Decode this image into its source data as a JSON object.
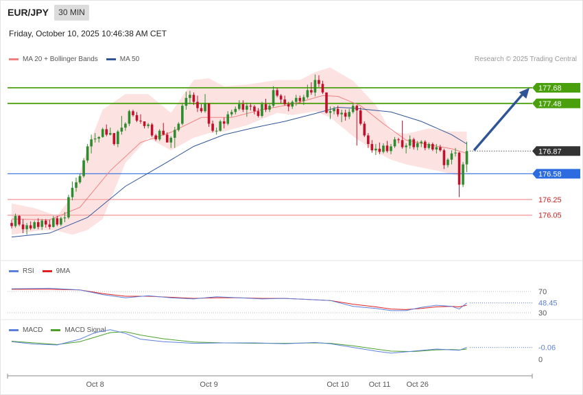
{
  "header": {
    "symbol": "EUR/JPY",
    "timeframe": "30 MIN",
    "datetime": "Friday, October 10, 2025 10:46:38 AM CET",
    "credit": "Research © 2025 Trading Central"
  },
  "legend": {
    "price": [
      {
        "label": "MA 20 + Bollinger Bands",
        "color": "#f08080"
      },
      {
        "label": "MA 50",
        "color": "#2f5597"
      }
    ],
    "rsi": [
      {
        "label": "RSI",
        "color": "#5b7fdb"
      },
      {
        "label": "9MA",
        "color": "#e02020"
      }
    ],
    "macd": [
      {
        "label": "MACD",
        "color": "#5b7fdb"
      },
      {
        "label": "MACD Signal",
        "color": "#4aa02a"
      }
    ]
  },
  "levels": [
    {
      "value": 177.68,
      "label": "177.68",
      "kind": "resistance",
      "color": "#4aa00c"
    },
    {
      "value": 177.48,
      "label": "177.48",
      "kind": "resistance",
      "color": "#4aa00c"
    },
    {
      "value": 176.87,
      "label": "176.87",
      "kind": "last",
      "color": "#333333"
    },
    {
      "value": 176.58,
      "label": "176.58",
      "kind": "pivot",
      "color": "#2d6be0"
    },
    {
      "value": 176.25,
      "label": "176.25",
      "kind": "support",
      "color": "#e06060"
    },
    {
      "value": 176.05,
      "label": "176.05",
      "kind": "support",
      "color": "#e06060"
    }
  ],
  "rsi_panel": {
    "ticks": [
      "70",
      "30"
    ],
    "last": "48.45"
  },
  "macd_panel": {
    "ticks": [
      "0",
      "0"
    ],
    "last": "-0.06"
  },
  "x_axis": {
    "labels": [
      "Oct 8",
      "Oct 9",
      "Oct 10",
      "Oct 11",
      "Oct 26"
    ]
  },
  "chart_data": {
    "type": "candlestick",
    "instrument": "EUR/JPY",
    "interval": "30 MIN",
    "ylim": [
      175.7,
      177.95
    ],
    "candles": [
      [
        175.95,
        175.99,
        175.88,
        175.91
      ],
      [
        175.91,
        176.07,
        175.89,
        176.04
      ],
      [
        176.04,
        176.05,
        175.91,
        175.93
      ],
      [
        175.93,
        176.0,
        175.82,
        175.87
      ],
      [
        175.87,
        175.95,
        175.8,
        175.92
      ],
      [
        175.92,
        175.97,
        175.86,
        175.88
      ],
      [
        175.88,
        175.98,
        175.87,
        175.96
      ],
      [
        175.96,
        176.01,
        175.87,
        175.9
      ],
      [
        175.9,
        176.0,
        175.86,
        175.98
      ],
      [
        175.98,
        176.0,
        175.89,
        175.93
      ],
      [
        175.93,
        175.99,
        175.87,
        175.9
      ],
      [
        175.9,
        176.04,
        175.89,
        176.01
      ],
      [
        176.01,
        176.04,
        175.91,
        175.93
      ],
      [
        175.93,
        176.03,
        175.91,
        176.01
      ],
      [
        176.01,
        176.09,
        175.96,
        176.02
      ],
      [
        176.02,
        176.31,
        176.0,
        176.28
      ],
      [
        176.28,
        176.48,
        176.24,
        176.4
      ],
      [
        176.4,
        176.53,
        176.35,
        176.47
      ],
      [
        176.47,
        176.58,
        176.45,
        176.55
      ],
      [
        176.55,
        176.78,
        176.53,
        176.75
      ],
      [
        176.75,
        176.96,
        176.72,
        176.93
      ],
      [
        176.93,
        177.08,
        176.84,
        177.02
      ],
      [
        177.02,
        177.1,
        176.98,
        177.03
      ],
      [
        177.03,
        177.06,
        176.98,
        177.05
      ],
      [
        177.05,
        177.17,
        177.04,
        177.15
      ],
      [
        177.15,
        177.21,
        177.06,
        177.08
      ],
      [
        177.08,
        177.17,
        177.07,
        177.1
      ],
      [
        177.1,
        177.1,
        176.94,
        176.96
      ],
      [
        176.96,
        177.14,
        176.92,
        177.12
      ],
      [
        177.12,
        177.32,
        177.08,
        177.17
      ],
      [
        177.17,
        177.24,
        177.13,
        177.22
      ],
      [
        177.22,
        177.4,
        177.19,
        177.38
      ],
      [
        177.38,
        177.4,
        177.31,
        177.33
      ],
      [
        177.33,
        177.37,
        177.24,
        177.26
      ],
      [
        177.26,
        177.34,
        177.22,
        177.25
      ],
      [
        177.25,
        177.25,
        177.16,
        177.19
      ],
      [
        177.19,
        177.23,
        177.16,
        177.21
      ],
      [
        177.21,
        177.23,
        177.05,
        177.07
      ],
      [
        177.07,
        177.09,
        177.0,
        177.02
      ],
      [
        177.02,
        177.15,
        177.0,
        177.13
      ],
      [
        177.13,
        177.23,
        177.07,
        177.08
      ],
      [
        177.08,
        177.11,
        176.98,
        176.98
      ],
      [
        176.98,
        177.06,
        176.91,
        177.04
      ],
      [
        177.04,
        177.18,
        176.91,
        177.14
      ],
      [
        177.14,
        177.24,
        177.12,
        177.22
      ],
      [
        177.22,
        177.48,
        177.2,
        177.45
      ],
      [
        177.45,
        177.63,
        177.4,
        177.55
      ],
      [
        177.55,
        177.64,
        177.47,
        177.59
      ],
      [
        177.59,
        177.62,
        177.46,
        177.5
      ],
      [
        177.5,
        177.58,
        177.37,
        177.42
      ],
      [
        177.42,
        177.47,
        177.36,
        177.38
      ],
      [
        177.38,
        177.6,
        177.36,
        177.48
      ],
      [
        177.48,
        177.48,
        177.18,
        177.22
      ],
      [
        177.22,
        177.26,
        177.11,
        177.13
      ],
      [
        177.13,
        177.17,
        177.08,
        177.13
      ],
      [
        177.13,
        177.27,
        177.12,
        177.25
      ],
      [
        177.25,
        177.3,
        177.16,
        177.22
      ],
      [
        177.22,
        177.38,
        177.2,
        177.34
      ],
      [
        177.34,
        177.4,
        177.31,
        177.37
      ],
      [
        177.37,
        177.44,
        177.34,
        177.41
      ],
      [
        177.41,
        177.52,
        177.39,
        177.47
      ],
      [
        177.47,
        177.52,
        177.37,
        177.4
      ],
      [
        177.4,
        177.49,
        177.31,
        177.45
      ],
      [
        177.45,
        177.48,
        177.39,
        177.44
      ],
      [
        177.44,
        177.46,
        177.34,
        177.38
      ],
      [
        177.38,
        177.42,
        177.3,
        177.32
      ],
      [
        177.32,
        177.5,
        177.3,
        177.47
      ],
      [
        177.47,
        177.54,
        177.37,
        177.4
      ],
      [
        177.4,
        177.47,
        177.37,
        177.45
      ],
      [
        177.45,
        177.7,
        177.43,
        177.65
      ],
      [
        177.65,
        177.68,
        177.56,
        177.58
      ],
      [
        177.58,
        177.6,
        177.48,
        177.53
      ],
      [
        177.53,
        177.58,
        177.45,
        177.47
      ],
      [
        177.47,
        177.5,
        177.38,
        177.44
      ],
      [
        177.44,
        177.52,
        177.41,
        177.5
      ],
      [
        177.5,
        177.59,
        177.45,
        177.55
      ],
      [
        177.55,
        177.58,
        177.48,
        177.51
      ],
      [
        177.51,
        177.59,
        177.46,
        177.56
      ],
      [
        177.56,
        177.72,
        177.54,
        177.65
      ],
      [
        177.65,
        177.75,
        177.59,
        177.62
      ],
      [
        177.62,
        177.85,
        177.57,
        177.78
      ],
      [
        177.78,
        177.84,
        177.69,
        177.73
      ],
      [
        177.73,
        177.77,
        177.6,
        177.62
      ],
      [
        177.62,
        177.62,
        177.35,
        177.36
      ],
      [
        177.36,
        177.44,
        177.28,
        177.38
      ],
      [
        177.38,
        177.44,
        177.34,
        177.41
      ],
      [
        177.41,
        177.45,
        177.31,
        177.34
      ],
      [
        177.34,
        177.4,
        177.24,
        177.36
      ],
      [
        177.36,
        177.4,
        177.26,
        177.31
      ],
      [
        177.31,
        177.41,
        177.28,
        177.37
      ],
      [
        177.37,
        177.48,
        177.35,
        177.45
      ],
      [
        177.45,
        177.46,
        176.94,
        177.39
      ],
      [
        177.39,
        177.43,
        177.2,
        177.22
      ],
      [
        177.22,
        177.25,
        177.05,
        177.07
      ],
      [
        177.07,
        177.1,
        176.91,
        176.96
      ],
      [
        176.96,
        177.01,
        176.85,
        176.88
      ],
      [
        176.88,
        176.96,
        176.82,
        176.9
      ],
      [
        176.9,
        176.98,
        176.83,
        176.86
      ],
      [
        176.86,
        176.97,
        176.84,
        176.94
      ],
      [
        176.94,
        177.0,
        176.85,
        176.87
      ],
      [
        176.87,
        176.96,
        176.83,
        176.93
      ],
      [
        176.93,
        177.05,
        176.91,
        177.02
      ],
      [
        177.02,
        177.04,
        176.97,
        177.01
      ],
      [
        177.01,
        177.26,
        176.9,
        176.92
      ],
      [
        176.92,
        176.97,
        176.84,
        176.94
      ],
      [
        176.94,
        177.07,
        176.9,
        177.02
      ],
      [
        177.02,
        177.04,
        176.89,
        176.92
      ],
      [
        176.92,
        177.0,
        176.88,
        176.97
      ],
      [
        176.97,
        177.01,
        176.92,
        176.99
      ],
      [
        176.99,
        177.01,
        176.88,
        176.91
      ],
      [
        176.91,
        176.98,
        176.89,
        176.96
      ],
      [
        176.96,
        176.98,
        176.87,
        176.89
      ],
      [
        176.89,
        176.96,
        176.84,
        176.92
      ],
      [
        176.92,
        176.95,
        176.86,
        176.88
      ],
      [
        176.88,
        176.9,
        176.64,
        176.69
      ],
      [
        176.69,
        176.78,
        176.66,
        176.76
      ],
      [
        176.76,
        176.88,
        176.7,
        176.84
      ],
      [
        176.84,
        176.91,
        176.8,
        176.85
      ],
      [
        176.85,
        176.86,
        176.28,
        176.44
      ],
      [
        176.44,
        176.73,
        176.41,
        176.7
      ],
      [
        176.7,
        176.99,
        176.6,
        176.87
      ]
    ],
    "ma20": [
      [
        0,
        176.0
      ],
      [
        10,
        175.99
      ],
      [
        18,
        176.15
      ],
      [
        26,
        176.62
      ],
      [
        34,
        176.98
      ],
      [
        42,
        177.11
      ],
      [
        50,
        177.3
      ],
      [
        58,
        177.3
      ],
      [
        66,
        177.4
      ],
      [
        74,
        177.47
      ],
      [
        82,
        177.58
      ],
      [
        86,
        177.57
      ],
      [
        92,
        177.45
      ],
      [
        98,
        177.22
      ],
      [
        104,
        177.01
      ],
      [
        110,
        176.95
      ],
      [
        116,
        176.9
      ],
      [
        120,
        176.84
      ]
    ],
    "bollinger_upper": [
      [
        0,
        176.2
      ],
      [
        6,
        176.14
      ],
      [
        12,
        176.04
      ],
      [
        16,
        176.3
      ],
      [
        20,
        176.9
      ],
      [
        24,
        177.4
      ],
      [
        30,
        177.6
      ],
      [
        36,
        177.6
      ],
      [
        42,
        177.36
      ],
      [
        48,
        177.78
      ],
      [
        52,
        177.8
      ],
      [
        56,
        177.7
      ],
      [
        62,
        177.72
      ],
      [
        70,
        177.78
      ],
      [
        76,
        177.78
      ],
      [
        80,
        177.88
      ],
      [
        84,
        177.94
      ],
      [
        90,
        177.77
      ],
      [
        96,
        177.46
      ],
      [
        100,
        177.12
      ],
      [
        104,
        177.09
      ],
      [
        110,
        177.16
      ],
      [
        116,
        177.12
      ],
      [
        120,
        177.12
      ]
    ],
    "bollinger_lower": [
      [
        0,
        175.8
      ],
      [
        8,
        175.86
      ],
      [
        12,
        175.85
      ],
      [
        16,
        175.8
      ],
      [
        20,
        175.86
      ],
      [
        24,
        176.0
      ],
      [
        30,
        176.72
      ],
      [
        36,
        177.04
      ],
      [
        42,
        176.88
      ],
      [
        48,
        177.04
      ],
      [
        52,
        177.1
      ],
      [
        56,
        177.12
      ],
      [
        62,
        177.2
      ],
      [
        70,
        177.36
      ],
      [
        74,
        177.33
      ],
      [
        80,
        177.38
      ],
      [
        84,
        177.3
      ],
      [
        90,
        177.06
      ],
      [
        96,
        176.86
      ],
      [
        100,
        176.76
      ],
      [
        104,
        176.7
      ],
      [
        108,
        176.66
      ],
      [
        114,
        176.6
      ],
      [
        118,
        176.55
      ],
      [
        120,
        176.66
      ]
    ],
    "ma50": [
      [
        0,
        175.77
      ],
      [
        10,
        175.82
      ],
      [
        20,
        176.02
      ],
      [
        30,
        176.42
      ],
      [
        40,
        176.7
      ],
      [
        48,
        176.93
      ],
      [
        56,
        177.08
      ],
      [
        64,
        177.17
      ],
      [
        72,
        177.25
      ],
      [
        80,
        177.35
      ],
      [
        86,
        177.43
      ],
      [
        90,
        177.42
      ],
      [
        100,
        177.37
      ],
      [
        108,
        177.25
      ],
      [
        116,
        177.08
      ],
      [
        120,
        176.96
      ]
    ],
    "projection": [
      [
        121,
        176.87
      ],
      [
        131,
        177.68
      ]
    ],
    "rsi": [
      [
        0,
        75
      ],
      [
        10,
        76
      ],
      [
        18,
        73
      ],
      [
        24,
        64
      ],
      [
        30,
        58
      ],
      [
        36,
        62
      ],
      [
        42,
        58
      ],
      [
        48,
        56
      ],
      [
        54,
        60
      ],
      [
        60,
        58
      ],
      [
        66,
        56
      ],
      [
        72,
        57
      ],
      [
        78,
        55
      ],
      [
        84,
        53
      ],
      [
        90,
        42
      ],
      [
        96,
        38
      ],
      [
        100,
        34
      ],
      [
        104,
        34
      ],
      [
        108,
        40
      ],
      [
        112,
        44
      ],
      [
        116,
        42
      ],
      [
        118,
        37
      ],
      [
        120,
        48.45
      ]
    ],
    "rsi_9ma": [
      [
        0,
        74
      ],
      [
        10,
        74
      ],
      [
        18,
        73
      ],
      [
        24,
        66
      ],
      [
        30,
        61
      ],
      [
        36,
        61
      ],
      [
        42,
        59
      ],
      [
        48,
        57
      ],
      [
        54,
        58
      ],
      [
        60,
        58
      ],
      [
        66,
        57
      ],
      [
        72,
        57
      ],
      [
        78,
        55
      ],
      [
        84,
        53
      ],
      [
        90,
        46
      ],
      [
        96,
        41
      ],
      [
        100,
        37
      ],
      [
        104,
        36
      ],
      [
        108,
        38
      ],
      [
        112,
        41
      ],
      [
        116,
        42
      ],
      [
        118,
        41
      ],
      [
        120,
        44
      ]
    ],
    "macd": [
      [
        0,
        0.08
      ],
      [
        6,
        0.02
      ],
      [
        12,
        0.0
      ],
      [
        18,
        0.14
      ],
      [
        22,
        0.3
      ],
      [
        26,
        0.37
      ],
      [
        30,
        0.28
      ],
      [
        34,
        0.14
      ],
      [
        40,
        0.08
      ],
      [
        48,
        0.04
      ],
      [
        56,
        0.05
      ],
      [
        64,
        0.05
      ],
      [
        72,
        0.03
      ],
      [
        80,
        0.06
      ],
      [
        84,
        0.03
      ],
      [
        90,
        -0.06
      ],
      [
        96,
        -0.15
      ],
      [
        100,
        -0.2
      ],
      [
        106,
        -0.15
      ],
      [
        112,
        -0.1
      ],
      [
        116,
        -0.12
      ],
      [
        118,
        -0.13
      ],
      [
        120,
        -0.06
      ]
    ],
    "macd_signal": [
      [
        0,
        0.09
      ],
      [
        6,
        0.05
      ],
      [
        12,
        0.01
      ],
      [
        18,
        0.08
      ],
      [
        22,
        0.19
      ],
      [
        26,
        0.3
      ],
      [
        30,
        0.32
      ],
      [
        34,
        0.24
      ],
      [
        40,
        0.15
      ],
      [
        48,
        0.07
      ],
      [
        56,
        0.05
      ],
      [
        64,
        0.04
      ],
      [
        72,
        0.04
      ],
      [
        80,
        0.05
      ],
      [
        84,
        0.04
      ],
      [
        90,
        -0.02
      ],
      [
        96,
        -0.1
      ],
      [
        100,
        -0.15
      ],
      [
        106,
        -0.16
      ],
      [
        112,
        -0.12
      ],
      [
        116,
        -0.11
      ],
      [
        118,
        -0.12
      ],
      [
        120,
        -0.1
      ]
    ],
    "x_ticks": [
      {
        "label": "Oct 8",
        "index": 22
      },
      {
        "label": "Oct 9",
        "index": 52
      },
      {
        "label": "Oct 10",
        "index": 86
      },
      {
        "label": "Oct 11",
        "index": 97
      },
      {
        "label": "Oct 26",
        "index": 107
      }
    ]
  }
}
